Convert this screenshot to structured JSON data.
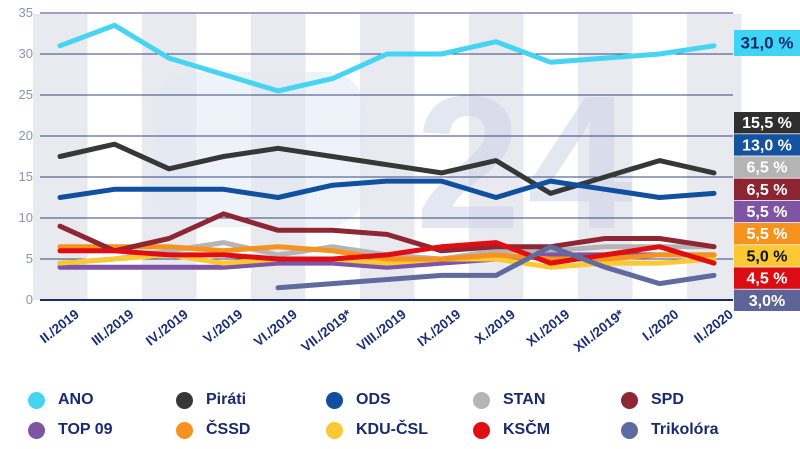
{
  "chart_data": {
    "type": "line",
    "title": "",
    "x_categories": [
      "II./2019",
      "III./2019",
      "IV./2019",
      "V./2019",
      "VI./2019",
      "VII./2019*",
      "VIII./2019",
      "IX./2019",
      "X./2019",
      "XI./2019",
      "XII./2019*",
      "I./2020",
      "II./2020"
    ],
    "ylim": [
      0,
      35
    ],
    "yticks": [
      0,
      5,
      10,
      15,
      20,
      25,
      30,
      35
    ],
    "grid": true,
    "legend_position": "bottom",
    "series": [
      {
        "name": "ANO",
        "color": "#45d4f2",
        "values": [
          31.0,
          33.5,
          29.5,
          27.5,
          25.5,
          27.0,
          30.0,
          30.0,
          31.5,
          29.0,
          29.5,
          30.0,
          31.0
        ]
      },
      {
        "name": "Piráti",
        "color": "#373737",
        "values": [
          17.5,
          19.0,
          16.0,
          17.5,
          18.5,
          17.5,
          16.5,
          15.5,
          17.0,
          13.0,
          15.0,
          17.0,
          15.5
        ]
      },
      {
        "name": "ODS",
        "color": "#10509e",
        "values": [
          12.5,
          13.5,
          13.5,
          13.5,
          12.5,
          14.0,
          14.5,
          14.5,
          12.5,
          14.5,
          13.5,
          12.5,
          13.0
        ]
      },
      {
        "name": "STAN",
        "color": "#b5b5b5",
        "values": [
          4.5,
          5.0,
          6.0,
          7.0,
          5.5,
          6.5,
          5.5,
          5.0,
          6.0,
          6.0,
          6.5,
          6.5,
          6.5
        ]
      },
      {
        "name": "SPD",
        "color": "#8e2733",
        "values": [
          9.0,
          6.0,
          7.5,
          10.5,
          8.5,
          8.5,
          8.0,
          6.0,
          6.5,
          6.5,
          7.5,
          7.5,
          6.5
        ]
      },
      {
        "name": "TOP 09",
        "color": "#7e54a4",
        "values": [
          4.0,
          4.0,
          4.0,
          4.0,
          4.5,
          4.5,
          4.0,
          4.5,
          5.0,
          5.5,
          5.5,
          5.5,
          5.5
        ]
      },
      {
        "name": "ČSSD",
        "color": "#f6921e",
        "values": [
          6.5,
          6.5,
          6.5,
          6.0,
          6.5,
          6.0,
          5.0,
          5.0,
          5.5,
          5.0,
          5.0,
          5.5,
          5.5
        ]
      },
      {
        "name": "KDU-ČSL",
        "color": "#f9c832",
        "values": [
          4.5,
          5.0,
          5.5,
          4.5,
          5.0,
          5.0,
          4.5,
          5.0,
          5.0,
          4.0,
          4.5,
          4.5,
          5.0
        ]
      },
      {
        "name": "KSČM",
        "color": "#e00d12",
        "values": [
          6.0,
          6.0,
          5.5,
          5.5,
          5.0,
          5.0,
          5.5,
          6.5,
          7.0,
          4.5,
          5.5,
          6.5,
          4.5
        ]
      },
      {
        "name": "Trikolóra",
        "color": "#5f6a9e",
        "values": [
          null,
          null,
          null,
          null,
          1.5,
          2.0,
          2.5,
          3.0,
          3.0,
          6.5,
          4.0,
          2.0,
          3.0
        ]
      }
    ],
    "value_labels": [
      {
        "text": "31,0 %",
        "bg": "#40d4f4",
        "fg": "#0a2d6e"
      },
      {
        "text": "15,5 %",
        "bg": "#2f2f2f",
        "fg": "#ffffff"
      },
      {
        "text": "13,0 %",
        "bg": "#1353a0",
        "fg": "#ffffff"
      },
      {
        "text": "6,5 %",
        "bg": "#b4b4b4",
        "fg": "#ffffff"
      },
      {
        "text": "6,5 %",
        "bg": "#8c2532",
        "fg": "#ffffff"
      },
      {
        "text": "5,5 %",
        "bg": "#7e54a4",
        "fg": "#ffffff"
      },
      {
        "text": "5,5 %",
        "bg": "#f6921e",
        "fg": "#ffffff"
      },
      {
        "text": "5,0 %",
        "bg": "#f9c832",
        "fg": "#111111"
      },
      {
        "text": "4,5 %",
        "bg": "#dc0d12",
        "fg": "#ffffff"
      },
      {
        "text": "3,0%",
        "bg": "#5c6498",
        "fg": "#ffffff"
      }
    ]
  },
  "watermark": "24",
  "colors": {
    "grid": "#37477f",
    "axis_zero": "#1c2a66",
    "ytick_text": "#8a93b4",
    "xtick_text": "#1b2f78",
    "stripe": "#e9eaef"
  }
}
